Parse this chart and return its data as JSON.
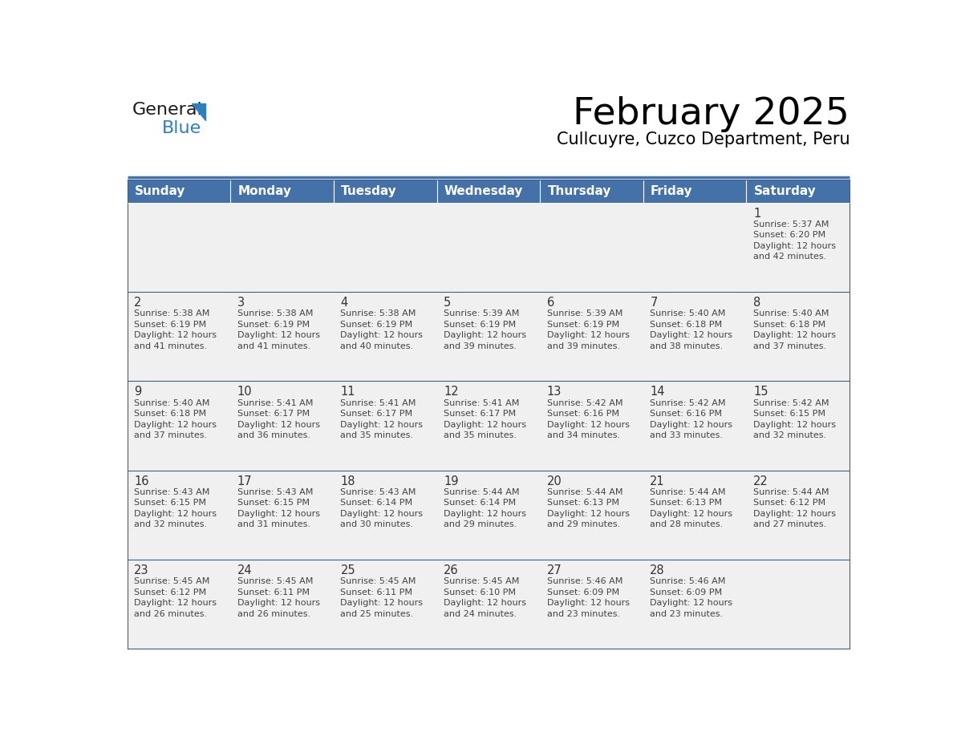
{
  "title": "February 2025",
  "subtitle": "Cullcuyre, Cuzco Department, Peru",
  "days_of_week": [
    "Sunday",
    "Monday",
    "Tuesday",
    "Wednesday",
    "Thursday",
    "Friday",
    "Saturday"
  ],
  "header_bg": "#4472a8",
  "header_text": "#ffffff",
  "cell_bg": "#f0f0f0",
  "row_border_color": "#3a5f8a",
  "text_color": "#444444",
  "day_num_color": "#333333",
  "logo_general_color": "#1a1a1a",
  "logo_blue_color": "#2e7fc1",
  "calendar_data": [
    [
      null,
      null,
      null,
      null,
      null,
      null,
      {
        "day": 1,
        "sunrise": "5:37 AM",
        "sunset": "6:20 PM",
        "daylight_h": "12 hours",
        "daylight_m": "and 42 minutes."
      }
    ],
    [
      {
        "day": 2,
        "sunrise": "5:38 AM",
        "sunset": "6:19 PM",
        "daylight_h": "12 hours",
        "daylight_m": "and 41 minutes."
      },
      {
        "day": 3,
        "sunrise": "5:38 AM",
        "sunset": "6:19 PM",
        "daylight_h": "12 hours",
        "daylight_m": "and 41 minutes."
      },
      {
        "day": 4,
        "sunrise": "5:38 AM",
        "sunset": "6:19 PM",
        "daylight_h": "12 hours",
        "daylight_m": "and 40 minutes."
      },
      {
        "day": 5,
        "sunrise": "5:39 AM",
        "sunset": "6:19 PM",
        "daylight_h": "12 hours",
        "daylight_m": "and 39 minutes."
      },
      {
        "day": 6,
        "sunrise": "5:39 AM",
        "sunset": "6:19 PM",
        "daylight_h": "12 hours",
        "daylight_m": "and 39 minutes."
      },
      {
        "day": 7,
        "sunrise": "5:40 AM",
        "sunset": "6:18 PM",
        "daylight_h": "12 hours",
        "daylight_m": "and 38 minutes."
      },
      {
        "day": 8,
        "sunrise": "5:40 AM",
        "sunset": "6:18 PM",
        "daylight_h": "12 hours",
        "daylight_m": "and 37 minutes."
      }
    ],
    [
      {
        "day": 9,
        "sunrise": "5:40 AM",
        "sunset": "6:18 PM",
        "daylight_h": "12 hours",
        "daylight_m": "and 37 minutes."
      },
      {
        "day": 10,
        "sunrise": "5:41 AM",
        "sunset": "6:17 PM",
        "daylight_h": "12 hours",
        "daylight_m": "and 36 minutes."
      },
      {
        "day": 11,
        "sunrise": "5:41 AM",
        "sunset": "6:17 PM",
        "daylight_h": "12 hours",
        "daylight_m": "and 35 minutes."
      },
      {
        "day": 12,
        "sunrise": "5:41 AM",
        "sunset": "6:17 PM",
        "daylight_h": "12 hours",
        "daylight_m": "and 35 minutes."
      },
      {
        "day": 13,
        "sunrise": "5:42 AM",
        "sunset": "6:16 PM",
        "daylight_h": "12 hours",
        "daylight_m": "and 34 minutes."
      },
      {
        "day": 14,
        "sunrise": "5:42 AM",
        "sunset": "6:16 PM",
        "daylight_h": "12 hours",
        "daylight_m": "and 33 minutes."
      },
      {
        "day": 15,
        "sunrise": "5:42 AM",
        "sunset": "6:15 PM",
        "daylight_h": "12 hours",
        "daylight_m": "and 32 minutes."
      }
    ],
    [
      {
        "day": 16,
        "sunrise": "5:43 AM",
        "sunset": "6:15 PM",
        "daylight_h": "12 hours",
        "daylight_m": "and 32 minutes."
      },
      {
        "day": 17,
        "sunrise": "5:43 AM",
        "sunset": "6:15 PM",
        "daylight_h": "12 hours",
        "daylight_m": "and 31 minutes."
      },
      {
        "day": 18,
        "sunrise": "5:43 AM",
        "sunset": "6:14 PM",
        "daylight_h": "12 hours",
        "daylight_m": "and 30 minutes."
      },
      {
        "day": 19,
        "sunrise": "5:44 AM",
        "sunset": "6:14 PM",
        "daylight_h": "12 hours",
        "daylight_m": "and 29 minutes."
      },
      {
        "day": 20,
        "sunrise": "5:44 AM",
        "sunset": "6:13 PM",
        "daylight_h": "12 hours",
        "daylight_m": "and 29 minutes."
      },
      {
        "day": 21,
        "sunrise": "5:44 AM",
        "sunset": "6:13 PM",
        "daylight_h": "12 hours",
        "daylight_m": "and 28 minutes."
      },
      {
        "day": 22,
        "sunrise": "5:44 AM",
        "sunset": "6:12 PM",
        "daylight_h": "12 hours",
        "daylight_m": "and 27 minutes."
      }
    ],
    [
      {
        "day": 23,
        "sunrise": "5:45 AM",
        "sunset": "6:12 PM",
        "daylight_h": "12 hours",
        "daylight_m": "and 26 minutes."
      },
      {
        "day": 24,
        "sunrise": "5:45 AM",
        "sunset": "6:11 PM",
        "daylight_h": "12 hours",
        "daylight_m": "and 26 minutes."
      },
      {
        "day": 25,
        "sunrise": "5:45 AM",
        "sunset": "6:11 PM",
        "daylight_h": "12 hours",
        "daylight_m": "and 25 minutes."
      },
      {
        "day": 26,
        "sunrise": "5:45 AM",
        "sunset": "6:10 PM",
        "daylight_h": "12 hours",
        "daylight_m": "and 24 minutes."
      },
      {
        "day": 27,
        "sunrise": "5:46 AM",
        "sunset": "6:09 PM",
        "daylight_h": "12 hours",
        "daylight_m": "and 23 minutes."
      },
      {
        "day": 28,
        "sunrise": "5:46 AM",
        "sunset": "6:09 PM",
        "daylight_h": "12 hours",
        "daylight_m": "and 23 minutes."
      },
      null
    ]
  ],
  "fig_width": 11.88,
  "fig_height": 9.18,
  "dpi": 100
}
